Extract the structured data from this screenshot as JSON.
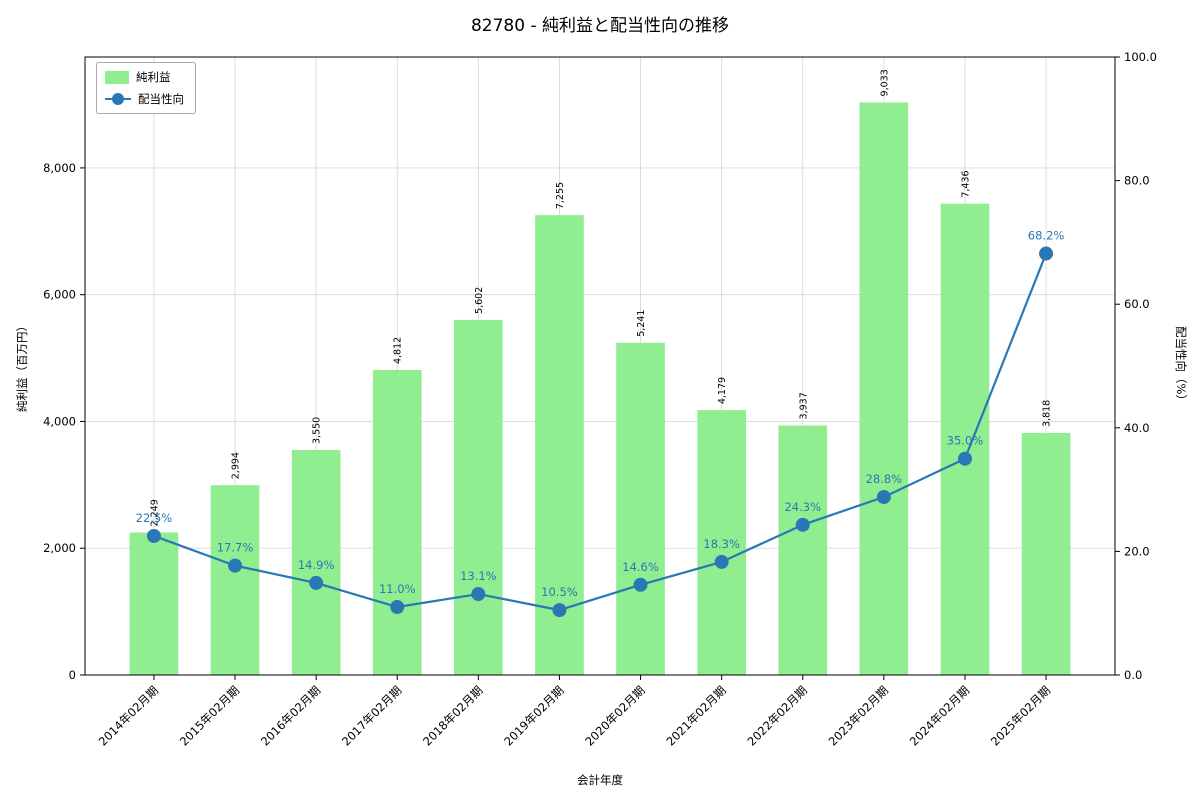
{
  "chart_data": {
    "type": "bar",
    "subtype": "combo-bar-line",
    "title": "82780 - 純利益と配当性向の推移",
    "xlabel": "会計年度",
    "ylabel_left": "純利益（百万円）",
    "ylabel_right": "配当性向（%）",
    "categories": [
      "2014年02月期",
      "2015年02月期",
      "2016年02月期",
      "2017年02月期",
      "2018年02月期",
      "2019年02月期",
      "2020年02月期",
      "2021年02月期",
      "2022年02月期",
      "2023年02月期",
      "2024年02月期",
      "2025年02月期"
    ],
    "series": [
      {
        "name": "純利益",
        "type": "bar",
        "axis": "left",
        "color": "#90ee90",
        "values": [
          2249,
          2994,
          3550,
          4812,
          5602,
          7255,
          5241,
          4179,
          3937,
          9033,
          7436,
          3818
        ]
      },
      {
        "name": "配当性向",
        "type": "line",
        "axis": "right",
        "color": "#2878b5",
        "values": [
          22.5,
          17.7,
          14.9,
          11.0,
          13.1,
          10.5,
          14.6,
          18.3,
          24.3,
          28.8,
          35.0,
          68.2
        ]
      }
    ],
    "ylim_left": [
      0,
      9750
    ],
    "ylim_right": [
      0,
      100
    ],
    "yticks_left": [
      0,
      2000,
      4000,
      6000,
      8000
    ],
    "yticks_right": [
      0,
      20,
      40,
      60,
      80,
      100
    ],
    "grid": true,
    "legend_position": "upper left",
    "colors": {
      "bar_fill": "#90ee90",
      "line": "#2878b5",
      "grid": "#d9d9d9",
      "spine": "#000000",
      "bar_label_text": "#000000",
      "pct_label_text": "#2878b5"
    }
  }
}
